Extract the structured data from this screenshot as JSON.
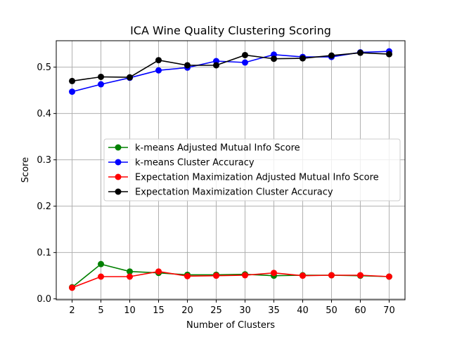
{
  "chart_data": {
    "type": "line",
    "title": "ICA Wine Quality  Clustering Scoring",
    "xlabel": "Number of Clusters",
    "ylabel": "Score",
    "categories": [
      "2",
      "5",
      "10",
      "15",
      "20",
      "25",
      "30",
      "35",
      "40",
      "50",
      "60",
      "70"
    ],
    "ylim": [
      -0.002,
      0.557
    ],
    "yticks": [
      0.0,
      0.1,
      0.2,
      0.3,
      0.4,
      0.5
    ],
    "ytick_labels": [
      "0.0",
      "0.1",
      "0.2",
      "0.3",
      "0.4",
      "0.5"
    ],
    "grid": true,
    "legend_position": "center-right",
    "series": [
      {
        "name": "k-means Adjusted Mutual Info Score",
        "color": "#008000",
        "values": [
          0.025,
          0.075,
          0.059,
          0.056,
          0.052,
          0.052,
          0.053,
          0.05,
          0.051,
          0.051,
          0.05,
          0.048
        ]
      },
      {
        "name": "k-means Cluster Accuracy",
        "color": "#0000ff",
        "values": [
          0.447,
          0.463,
          0.477,
          0.493,
          0.499,
          0.513,
          0.51,
          0.527,
          0.522,
          0.522,
          0.532,
          0.534
        ]
      },
      {
        "name": "Expectation Maximization Adjusted Mutual Info Score",
        "color": "#ff0000",
        "values": [
          0.024,
          0.048,
          0.048,
          0.059,
          0.049,
          0.05,
          0.051,
          0.056,
          0.05,
          0.051,
          0.051,
          0.048
        ]
      },
      {
        "name": "Expectation Maximization Cluster Accuracy",
        "color": "#000000",
        "values": [
          0.47,
          0.479,
          0.478,
          0.515,
          0.504,
          0.504,
          0.526,
          0.518,
          0.519,
          0.525,
          0.531,
          0.528
        ]
      }
    ]
  }
}
